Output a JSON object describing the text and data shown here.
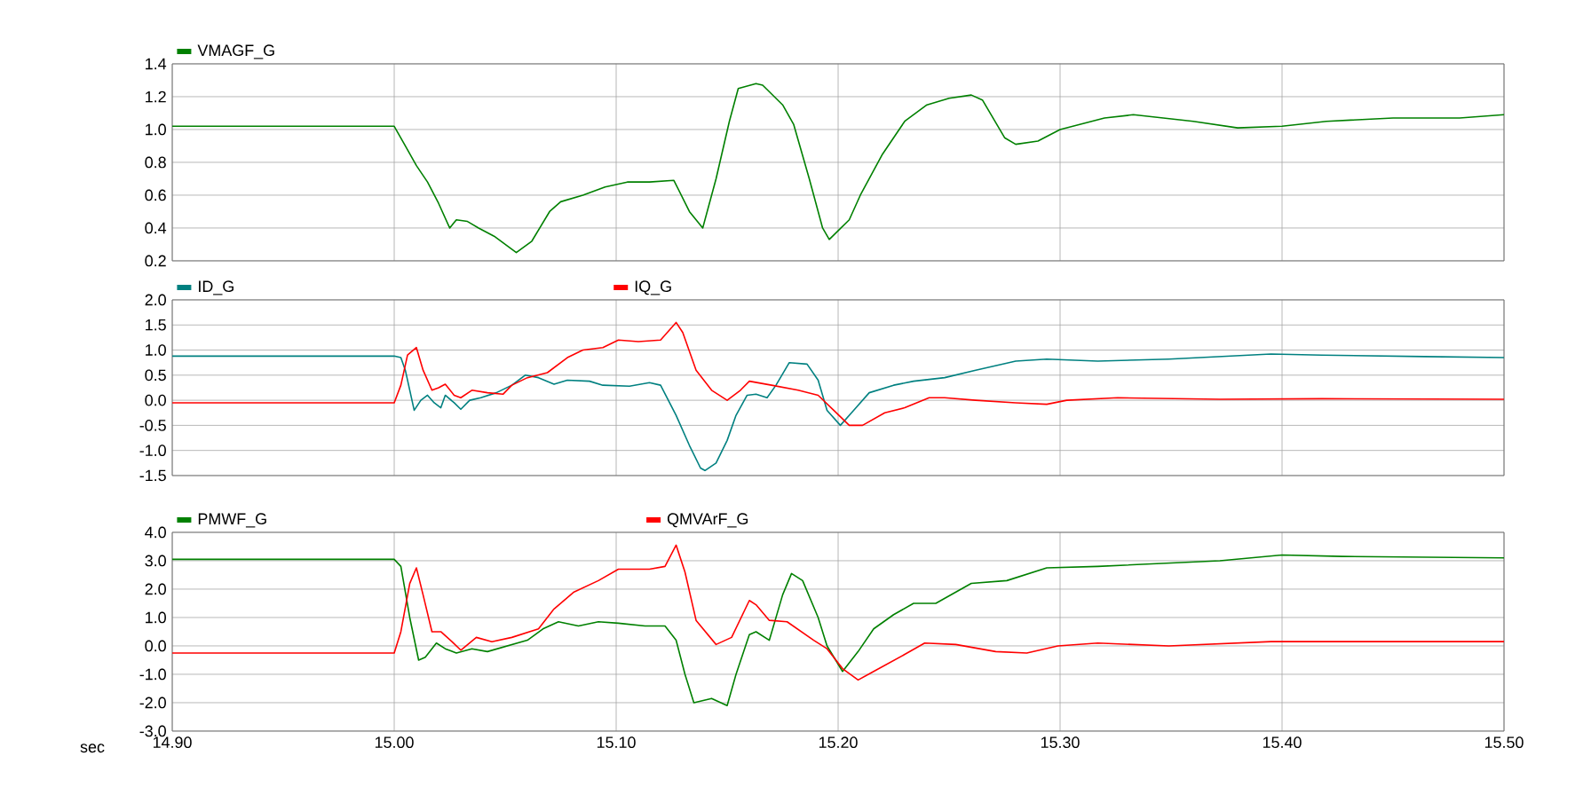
{
  "chart_data": [
    {
      "type": "line",
      "legend": "top left",
      "grid": true,
      "tick_labels": "y",
      "xlim": [
        14.9,
        15.5
      ],
      "xticks": [
        {
          "value": 14.9,
          "label": null
        },
        {
          "value": 15.0,
          "label": null
        },
        {
          "value": 15.1,
          "label": null
        },
        {
          "value": 15.2,
          "label": null
        },
        {
          "value": 15.3,
          "label": null
        },
        {
          "value": 15.4,
          "label": null
        },
        {
          "value": 15.5,
          "label": null
        }
      ],
      "ylim": [
        0.2,
        1.4
      ],
      "yticks": [
        {
          "value": 0.2,
          "label": "0.2"
        },
        {
          "value": 0.4,
          "label": "0.4"
        },
        {
          "value": 0.6,
          "label": "0.6"
        },
        {
          "value": 0.8,
          "label": "0.8"
        },
        {
          "value": 1.0,
          "label": "1.0"
        },
        {
          "value": 1.2,
          "label": "1.2"
        },
        {
          "value": 1.4,
          "label": "1.4"
        }
      ],
      "series": [
        {
          "name": "VMAGF_G",
          "color": "#008000",
          "x": [
            14.9,
            15.0,
            15.005,
            15.01,
            15.015,
            15.02,
            15.025,
            15.028,
            15.033,
            15.038,
            15.045,
            15.055,
            15.062,
            15.07,
            15.075,
            15.085,
            15.095,
            15.105,
            15.115,
            15.126,
            15.133,
            15.139,
            15.145,
            15.151,
            15.155,
            15.163,
            15.166,
            15.175,
            15.18,
            15.187,
            15.193,
            15.196,
            15.205,
            15.21,
            15.22,
            15.23,
            15.24,
            15.25,
            15.26,
            15.265,
            15.275,
            15.28,
            15.29,
            15.3,
            15.32,
            15.333,
            15.36,
            15.38,
            15.4,
            15.42,
            15.45,
            15.48,
            15.5
          ],
          "values": [
            1.02,
            1.02,
            0.9,
            0.78,
            0.68,
            0.55,
            0.4,
            0.45,
            0.44,
            0.4,
            0.35,
            0.25,
            0.32,
            0.5,
            0.56,
            0.6,
            0.65,
            0.68,
            0.68,
            0.69,
            0.5,
            0.4,
            0.7,
            1.05,
            1.25,
            1.28,
            1.27,
            1.15,
            1.03,
            0.7,
            0.4,
            0.33,
            0.45,
            0.6,
            0.85,
            1.05,
            1.15,
            1.19,
            1.21,
            1.18,
            0.95,
            0.91,
            0.93,
            1.0,
            1.07,
            1.09,
            1.05,
            1.01,
            1.02,
            1.05,
            1.07,
            1.07,
            1.09
          ]
        }
      ]
    },
    {
      "type": "line",
      "legend": "top left",
      "grid": true,
      "tick_labels": "y",
      "xlim": [
        14.9,
        15.5
      ],
      "xticks": [
        {
          "value": 14.9,
          "label": null
        },
        {
          "value": 15.0,
          "label": null
        },
        {
          "value": 15.1,
          "label": null
        },
        {
          "value": 15.2,
          "label": null
        },
        {
          "value": 15.3,
          "label": null
        },
        {
          "value": 15.4,
          "label": null
        },
        {
          "value": 15.5,
          "label": null
        }
      ],
      "ylim": [
        -1.5,
        2.0
      ],
      "yticks": [
        {
          "value": -1.5,
          "label": "-1.5"
        },
        {
          "value": -1.0,
          "label": "-1.0"
        },
        {
          "value": -0.5,
          "label": "-0.5"
        },
        {
          "value": 0.0,
          "label": "0.0"
        },
        {
          "value": 0.5,
          "label": "0.5"
        },
        {
          "value": 1.0,
          "label": "1.0"
        },
        {
          "value": 1.5,
          "label": "1.5"
        },
        {
          "value": 2.0,
          "label": "2.0"
        }
      ],
      "series": [
        {
          "name": "ID_G",
          "color": "#008080",
          "x": [
            14.9,
            15.0,
            15.003,
            15.005,
            15.009,
            15.012,
            15.015,
            15.018,
            15.021,
            15.023,
            15.027,
            15.03,
            15.034,
            15.039,
            15.046,
            15.053,
            15.059,
            15.065,
            15.072,
            15.078,
            15.088,
            15.094,
            15.106,
            15.115,
            15.12,
            15.127,
            15.133,
            15.138,
            15.14,
            15.145,
            15.15,
            15.154,
            15.159,
            15.163,
            15.168,
            15.172,
            15.178,
            15.186,
            15.191,
            15.195,
            15.201,
            15.207,
            15.214,
            15.225,
            15.234,
            15.248,
            15.262,
            15.28,
            15.294,
            15.317,
            15.349,
            15.395,
            15.418,
            15.464,
            15.5
          ],
          "values": [
            0.88,
            0.88,
            0.85,
            0.6,
            -0.2,
            0.0,
            0.1,
            -0.05,
            -0.15,
            0.1,
            -0.05,
            -0.18,
            0.0,
            0.05,
            0.15,
            0.3,
            0.5,
            0.45,
            0.32,
            0.4,
            0.38,
            0.3,
            0.28,
            0.35,
            0.3,
            -0.3,
            -0.9,
            -1.35,
            -1.4,
            -1.25,
            -0.8,
            -0.3,
            0.1,
            0.12,
            0.05,
            0.3,
            0.75,
            0.72,
            0.4,
            -0.2,
            -0.5,
            -0.2,
            0.15,
            0.3,
            0.38,
            0.45,
            0.6,
            0.78,
            0.82,
            0.78,
            0.82,
            0.92,
            0.9,
            0.87,
            0.85
          ]
        },
        {
          "name": "IQ_G",
          "color": "#ff0000",
          "x": [
            14.9,
            15.0,
            15.003,
            15.006,
            15.01,
            15.013,
            15.017,
            15.02,
            15.023,
            15.027,
            15.03,
            15.035,
            15.042,
            15.049,
            15.053,
            15.06,
            15.069,
            15.078,
            15.085,
            15.094,
            15.101,
            15.11,
            15.12,
            15.127,
            15.13,
            15.136,
            15.143,
            15.15,
            15.156,
            15.16,
            15.17,
            15.182,
            15.191,
            15.198,
            15.205,
            15.211,
            15.221,
            15.23,
            15.241,
            15.248,
            15.262,
            15.28,
            15.294,
            15.303,
            15.326,
            15.372,
            15.418,
            15.5
          ],
          "values": [
            -0.05,
            -0.05,
            0.3,
            0.9,
            1.05,
            0.6,
            0.2,
            0.25,
            0.32,
            0.1,
            0.05,
            0.2,
            0.15,
            0.12,
            0.3,
            0.45,
            0.55,
            0.85,
            1.0,
            1.05,
            1.2,
            1.17,
            1.2,
            1.55,
            1.35,
            0.6,
            0.2,
            0.0,
            0.2,
            0.38,
            0.3,
            0.2,
            0.1,
            -0.2,
            -0.5,
            -0.5,
            -0.25,
            -0.15,
            0.05,
            0.05,
            0.0,
            -0.05,
            -0.08,
            0.0,
            0.05,
            0.02,
            0.03,
            0.02
          ]
        }
      ]
    },
    {
      "type": "line",
      "legend": "top left",
      "grid": true,
      "xlabel": "sec",
      "xlim": [
        14.9,
        15.5
      ],
      "xticks": [
        {
          "value": 14.9,
          "label": "14.90"
        },
        {
          "value": 15.0,
          "label": "15.00"
        },
        {
          "value": 15.1,
          "label": "15.10"
        },
        {
          "value": 15.2,
          "label": "15.20"
        },
        {
          "value": 15.3,
          "label": "15.30"
        },
        {
          "value": 15.4,
          "label": "15.40"
        },
        {
          "value": 15.5,
          "label": "15.50"
        }
      ],
      "ylim": [
        -3.0,
        4.0
      ],
      "yticks": [
        {
          "value": -3.0,
          "label": "-3.0"
        },
        {
          "value": -2.0,
          "label": "-2.0"
        },
        {
          "value": -1.0,
          "label": "-1.0"
        },
        {
          "value": 0.0,
          "label": "0.0"
        },
        {
          "value": 1.0,
          "label": "1.0"
        },
        {
          "value": 2.0,
          "label": "2.0"
        },
        {
          "value": 3.0,
          "label": "3.0"
        },
        {
          "value": 4.0,
          "label": "4.0"
        }
      ],
      "series": [
        {
          "name": "PMWF_G",
          "color": "#008000",
          "x": [
            14.9,
            15.0,
            15.003,
            15.007,
            15.011,
            15.014,
            15.019,
            15.023,
            15.028,
            15.035,
            15.042,
            15.051,
            15.06,
            15.067,
            15.074,
            15.083,
            15.092,
            15.101,
            15.113,
            15.122,
            15.127,
            15.131,
            15.135,
            15.143,
            15.15,
            15.154,
            15.16,
            15.163,
            15.169,
            15.175,
            15.179,
            15.184,
            15.191,
            15.195,
            15.202,
            15.209,
            15.216,
            15.225,
            15.234,
            15.244,
            15.26,
            15.276,
            15.294,
            15.317,
            15.372,
            15.4,
            15.427,
            15.5
          ],
          "values": [
            3.05,
            3.05,
            2.8,
            1.0,
            -0.5,
            -0.4,
            0.1,
            -0.1,
            -0.25,
            -0.1,
            -0.2,
            0.0,
            0.2,
            0.6,
            0.85,
            0.7,
            0.85,
            0.8,
            0.7,
            0.7,
            0.2,
            -1.0,
            -2.0,
            -1.85,
            -2.1,
            -1.0,
            0.4,
            0.5,
            0.2,
            1.8,
            2.55,
            2.3,
            1.0,
            0.0,
            -0.9,
            -0.2,
            0.6,
            1.1,
            1.5,
            1.5,
            2.2,
            2.3,
            2.75,
            2.8,
            3.0,
            3.2,
            3.15,
            3.1
          ]
        },
        {
          "name": "QMVArF_G",
          "color": "#ff0000",
          "x": [
            14.9,
            15.0,
            15.003,
            15.007,
            15.01,
            15.013,
            15.017,
            15.021,
            15.026,
            15.03,
            15.037,
            15.044,
            15.053,
            15.065,
            15.072,
            15.081,
            15.092,
            15.101,
            15.115,
            15.122,
            15.127,
            15.131,
            15.136,
            15.145,
            15.152,
            15.16,
            15.163,
            15.169,
            15.177,
            15.189,
            15.195,
            15.202,
            15.209,
            15.216,
            15.23,
            15.239,
            15.253,
            15.271,
            15.285,
            15.299,
            15.317,
            15.349,
            15.395,
            15.5
          ],
          "values": [
            -0.25,
            -0.25,
            0.5,
            2.2,
            2.75,
            1.8,
            0.5,
            0.5,
            0.15,
            -0.15,
            0.3,
            0.15,
            0.3,
            0.6,
            1.3,
            1.9,
            2.3,
            2.7,
            2.7,
            2.8,
            3.55,
            2.6,
            0.9,
            0.05,
            0.3,
            1.6,
            1.45,
            0.9,
            0.85,
            0.2,
            -0.1,
            -0.8,
            -1.2,
            -0.9,
            -0.3,
            0.1,
            0.05,
            -0.2,
            -0.25,
            0.0,
            0.1,
            0.0,
            0.15,
            0.15
          ]
        }
      ]
    }
  ]
}
